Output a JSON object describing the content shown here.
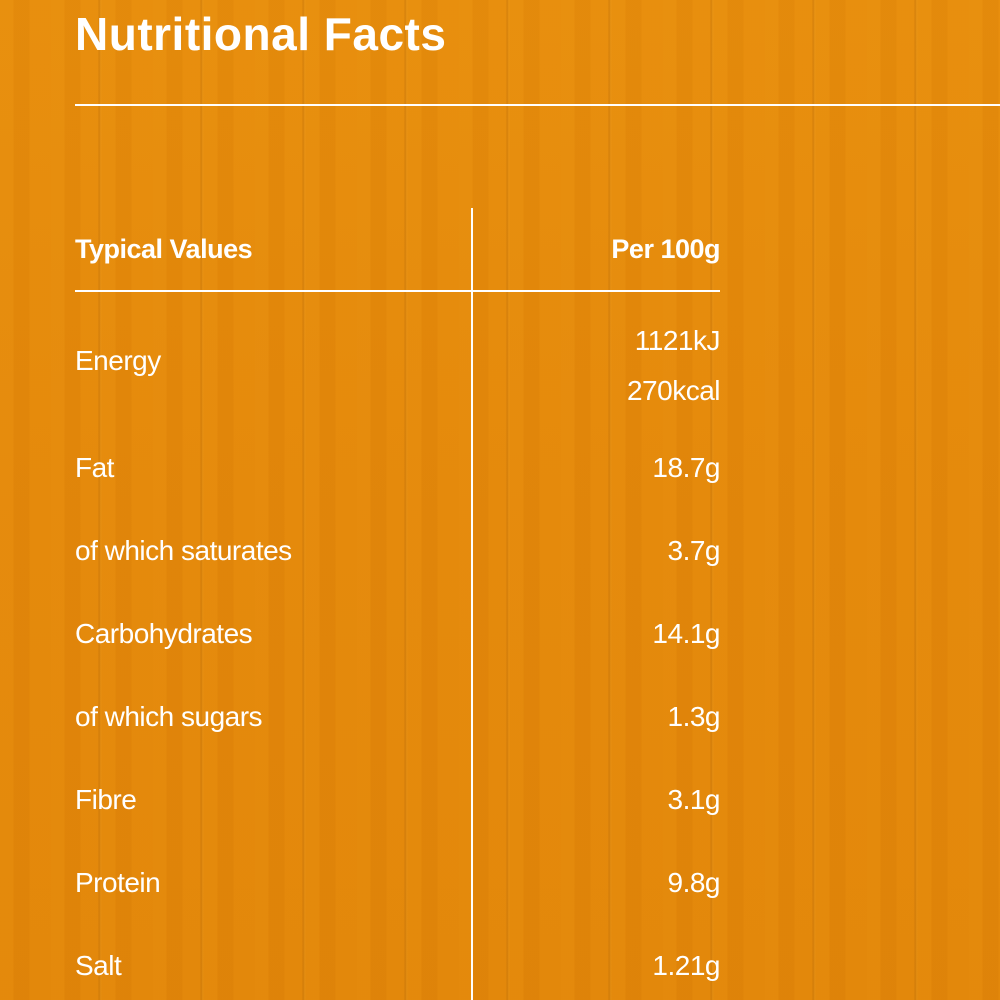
{
  "title": "Nutritional Facts",
  "table": {
    "header": {
      "label": "Typical Values",
      "value": "Per 100g"
    },
    "energy": {
      "label": "Energy",
      "kj": "1121kJ",
      "kcal": "270kcal"
    },
    "rows": [
      {
        "label": "Fat",
        "value": "18.7g"
      },
      {
        "label": "of which saturates",
        "value": "3.7g"
      },
      {
        "label": "Carbohydrates",
        "value": "14.1g"
      },
      {
        "label": "of which sugars",
        "value": "1.3g"
      },
      {
        "label": "Fibre",
        "value": "3.1g"
      },
      {
        "label": "Protein",
        "value": "9.8g"
      },
      {
        "label": "Salt",
        "value": "1.21g"
      }
    ]
  },
  "colors": {
    "background": "#e58a0a",
    "text": "#ffffff"
  }
}
